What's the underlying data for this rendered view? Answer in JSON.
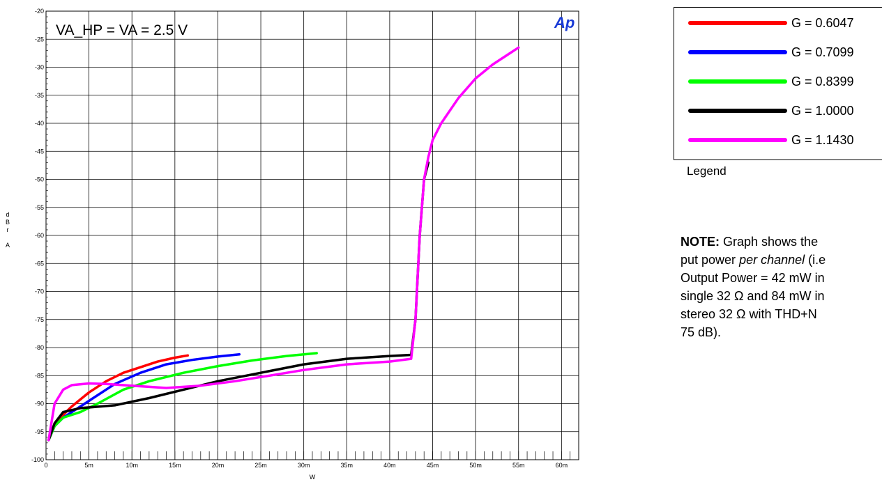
{
  "chart_data": {
    "type": "line",
    "title": "VA_HP = VA = 2.5 V",
    "logo_text": "Ap",
    "xlabel": "W",
    "ylabel": [
      "d",
      "B",
      "r",
      "",
      "A"
    ],
    "xlim": [
      0,
      0.062
    ],
    "ylim": [
      -100,
      -20
    ],
    "grid": true,
    "x_tick_labels": [
      "0",
      "5m",
      "10m",
      "15m",
      "20m",
      "25m",
      "30m",
      "35m",
      "40m",
      "45m",
      "50m",
      "55m",
      "60m"
    ],
    "y_tick_labels": [
      "-20",
      "-25",
      "-30",
      "-35",
      "-40",
      "-45",
      "-50",
      "-55",
      "-60",
      "-65",
      "-70",
      "-75",
      "-80",
      "-85",
      "-90",
      "-95",
      "-100"
    ],
    "legend_placement": "right",
    "series": [
      {
        "name": "G = 0.6047",
        "color": "#ff0000",
        "x": [
          0.0003,
          0.001,
          0.002,
          0.003,
          0.005,
          0.007,
          0.009,
          0.011,
          0.013,
          0.015,
          0.0165
        ],
        "y": [
          -96.5,
          -94,
          -92,
          -90.5,
          -88,
          -86,
          -84.5,
          -83.5,
          -82.5,
          -81.8,
          -81.4
        ]
      },
      {
        "name": "G = 0.7099",
        "color": "#0000ff",
        "x": [
          0.0003,
          0.001,
          0.002,
          0.003,
          0.005,
          0.008,
          0.011,
          0.014,
          0.017,
          0.02,
          0.0225
        ],
        "y": [
          -96.5,
          -94,
          -92.5,
          -91.5,
          -89.5,
          -86.5,
          -84.5,
          -83,
          -82.2,
          -81.6,
          -81.2
        ]
      },
      {
        "name": "G = 0.8399",
        "color": "#00ff00",
        "x": [
          0.0003,
          0.001,
          0.002,
          0.004,
          0.006,
          0.009,
          0.012,
          0.016,
          0.02,
          0.024,
          0.028,
          0.0315
        ],
        "y": [
          -96.5,
          -94,
          -92.5,
          -91.5,
          -90,
          -87.5,
          -86,
          -84.5,
          -83.3,
          -82.3,
          -81.5,
          -81
        ]
      },
      {
        "name": "G = 1.0000",
        "color": "#000000",
        "x": [
          0.0003,
          0.001,
          0.002,
          0.004,
          0.008,
          0.012,
          0.016,
          0.02,
          0.025,
          0.03,
          0.035,
          0.04,
          0.0425,
          0.043,
          0.0435,
          0.044,
          0.0445
        ],
        "y": [
          -96.5,
          -93.5,
          -91.5,
          -90.8,
          -90.3,
          -89,
          -87.5,
          -86,
          -84.5,
          -83,
          -82,
          -81.5,
          -81.3,
          -75,
          -60,
          -50,
          -47
        ]
      },
      {
        "name": "G = 1.1430",
        "color": "#ff00ff",
        "x": [
          0.0003,
          0.001,
          0.002,
          0.003,
          0.005,
          0.007,
          0.01,
          0.014,
          0.018,
          0.022,
          0.026,
          0.03,
          0.035,
          0.04,
          0.0425,
          0.043,
          0.0435,
          0.044,
          0.0445,
          0.045,
          0.046,
          0.048,
          0.05,
          0.052,
          0.054,
          0.055
        ],
        "y": [
          -96.5,
          -90,
          -87.5,
          -86.7,
          -86.4,
          -86.5,
          -86.8,
          -87.2,
          -86.8,
          -86,
          -85,
          -84,
          -83,
          -82.5,
          -82,
          -75,
          -60,
          -50,
          -46,
          -43,
          -40,
          -35.5,
          -32,
          -29.5,
          -27.5,
          -26.5
        ]
      }
    ]
  },
  "legend": {
    "caption": "Legend",
    "items": [
      {
        "label": "G = 0.6047",
        "color": "#ff0000"
      },
      {
        "label": "G = 0.7099",
        "color": "#0000ff"
      },
      {
        "label": "G = 0.8399",
        "color": "#00ff00"
      },
      {
        "label": "G = 1.0000",
        "color": "#000000"
      },
      {
        "label": "G = 1.1430",
        "color": "#ff00ff"
      }
    ]
  },
  "note": {
    "bold": "NOTE:",
    "line1_rest": " Graph shows the",
    "line2_pre": "put power ",
    "line2_italic": "per channel",
    "line2_post": " (i.e",
    "line3": "Output Power = 42 mW in",
    "line4": "single 32 Ω and 84 mW in",
    "line5": "stereo 32 Ω with THD+N",
    "line6": "75 dB)."
  }
}
